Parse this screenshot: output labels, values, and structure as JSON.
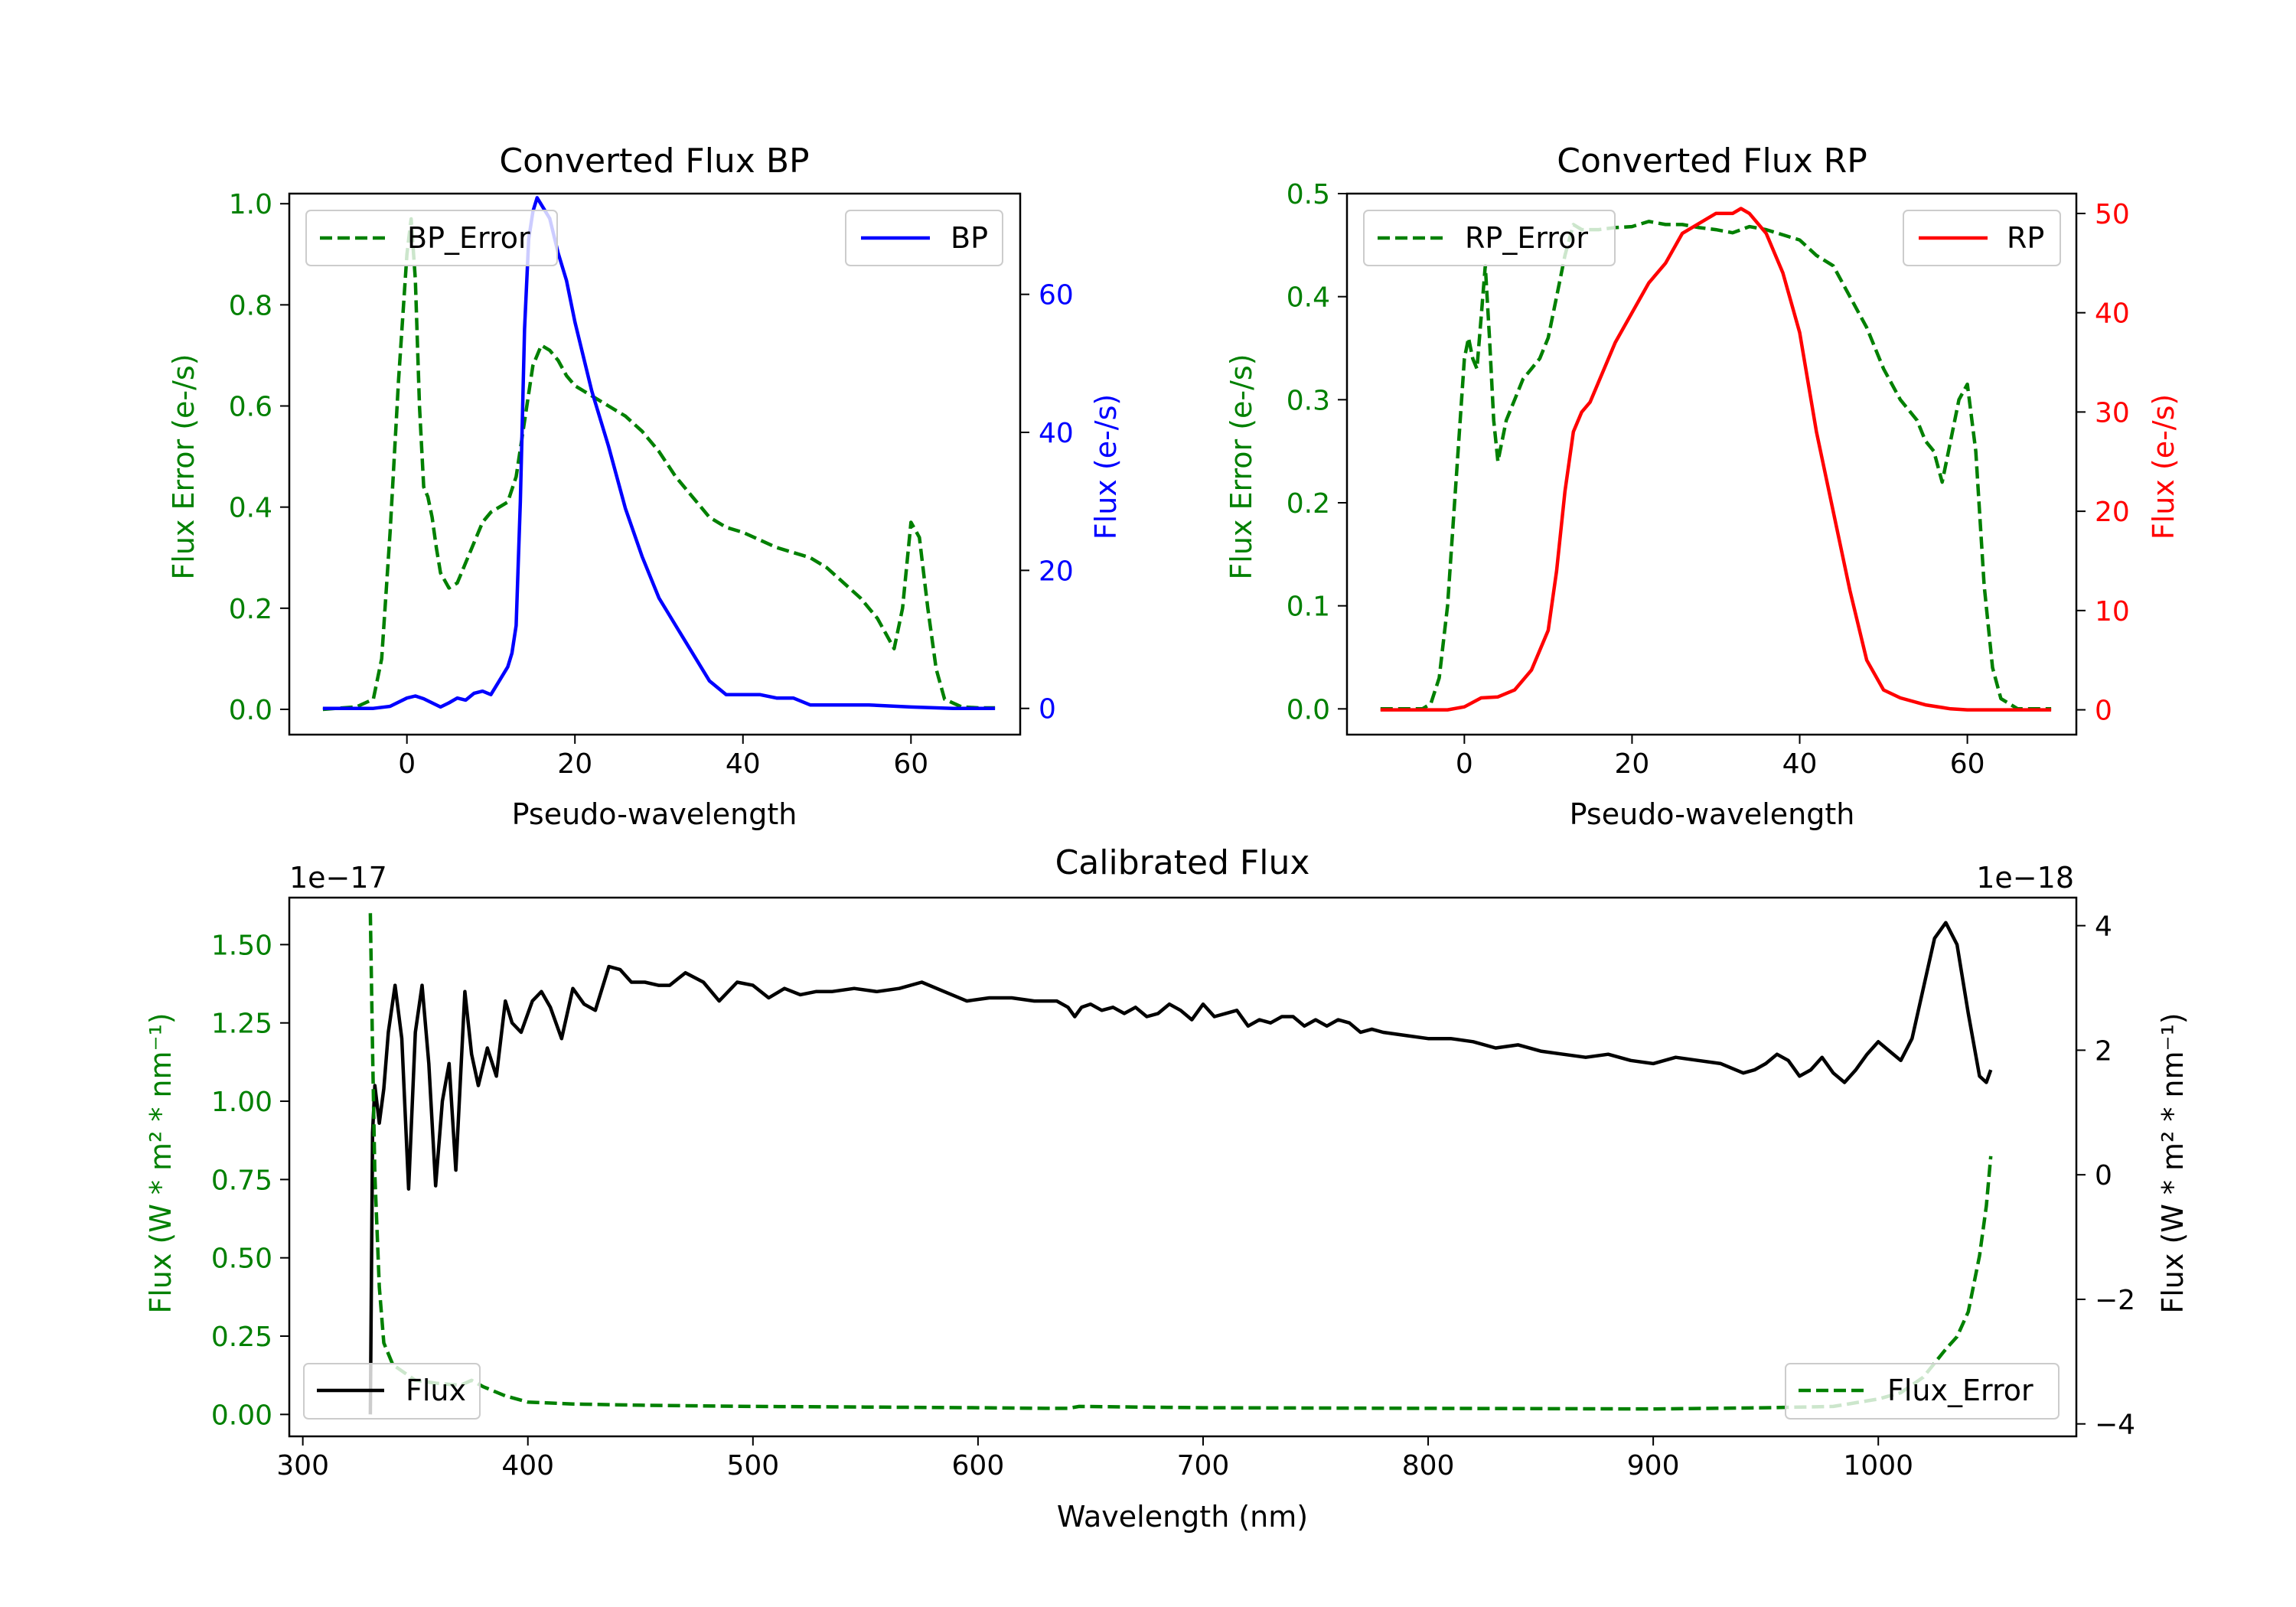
{
  "chart_data": [
    {
      "id": "bp",
      "type": "line",
      "title": "Converted Flux BP",
      "xlabel": "Pseudo-wavelength",
      "ylabel_left": "Flux Error (e-/s)",
      "ylabel_right": "Flux (e-/s)",
      "xlim": [
        -14,
        73
      ],
      "ylim_left": [
        -0.05,
        1.02
      ],
      "ylim_right": [
        -3.8,
        74.6
      ],
      "xticks": [
        0,
        20,
        40,
        60
      ],
      "yticks_left": [
        0.0,
        0.2,
        0.4,
        0.6,
        0.8,
        1.0
      ],
      "yticks_right": [
        0,
        20,
        40,
        60
      ],
      "left_color": "#008000",
      "right_color": "#0000ff",
      "legend_left": "BP_Error",
      "legend_right": "BP",
      "series": [
        {
          "name": "BP_Error",
          "axis": "left",
          "style": "dashed",
          "color": "#008000",
          "x": [
            -10,
            -6,
            -4,
            -3,
            -2,
            -1,
            0,
            0.5,
            1,
            1.5,
            2,
            2.5,
            3,
            3.5,
            4,
            5,
            6,
            7,
            8,
            9,
            10,
            11,
            12,
            13,
            14,
            15,
            16,
            17,
            18,
            19,
            20,
            22,
            24,
            26,
            28,
            30,
            32,
            34,
            36,
            38,
            40,
            44,
            48,
            50,
            52,
            54,
            56,
            57,
            58,
            59,
            60,
            61,
            62,
            63,
            64,
            66,
            68,
            70
          ],
          "y": [
            0.0,
            0.005,
            0.02,
            0.1,
            0.35,
            0.65,
            0.9,
            0.97,
            0.85,
            0.6,
            0.44,
            0.42,
            0.38,
            0.32,
            0.27,
            0.24,
            0.25,
            0.29,
            0.33,
            0.37,
            0.39,
            0.4,
            0.41,
            0.46,
            0.57,
            0.68,
            0.72,
            0.71,
            0.69,
            0.66,
            0.64,
            0.62,
            0.6,
            0.58,
            0.55,
            0.51,
            0.46,
            0.42,
            0.38,
            0.36,
            0.35,
            0.32,
            0.3,
            0.28,
            0.25,
            0.22,
            0.18,
            0.15,
            0.12,
            0.2,
            0.37,
            0.34,
            0.2,
            0.08,
            0.02,
            0.005,
            0.003,
            0.003
          ]
        },
        {
          "name": "BP",
          "axis": "right",
          "style": "solid",
          "color": "#0000ff",
          "x": [
            -10,
            -6,
            -4,
            -2,
            0,
            1,
            2,
            3,
            4,
            5,
            6,
            7,
            8,
            9,
            10,
            11,
            12,
            12.5,
            13,
            13.5,
            14,
            14.5,
            15,
            15.5,
            16,
            17,
            18,
            19,
            20,
            22,
            24,
            26,
            28,
            30,
            31,
            32,
            34,
            36,
            38,
            40,
            42,
            44,
            46,
            48,
            50,
            55,
            60,
            65,
            70
          ],
          "y": [
            0,
            0,
            0,
            0.3,
            1.5,
            1.8,
            1.4,
            0.8,
            0.2,
            0.8,
            1.5,
            1.2,
            2.2,
            2.5,
            2,
            4,
            6,
            8,
            12,
            30,
            55,
            68,
            72,
            74,
            73,
            71,
            66,
            62,
            56,
            46,
            38,
            29,
            22,
            16,
            14,
            12,
            8,
            4,
            2,
            2,
            2,
            1.5,
            1.5,
            0.5,
            0.5,
            0.5,
            0.2,
            0,
            0
          ]
        }
      ]
    },
    {
      "id": "rp",
      "type": "line",
      "title": "Converted Flux RP",
      "xlabel": "Pseudo-wavelength",
      "ylabel_left": "Flux Error (e-/s)",
      "ylabel_right": "Flux (e-/s)",
      "xlim": [
        -14,
        73
      ],
      "ylim_left": [
        -0.025,
        0.5
      ],
      "ylim_right": [
        -2.5,
        52
      ],
      "xticks": [
        0,
        20,
        40,
        60
      ],
      "yticks_left": [
        0.0,
        0.1,
        0.2,
        0.3,
        0.4,
        0.5
      ],
      "yticks_right": [
        0,
        10,
        20,
        30,
        40,
        50
      ],
      "left_color": "#008000",
      "right_color": "#ff0000",
      "legend_left": "RP_Error",
      "legend_right": "RP",
      "series": [
        {
          "name": "RP_Error",
          "axis": "left",
          "style": "dashed",
          "color": "#008000",
          "x": [
            -10,
            -5,
            -4,
            -3,
            -2,
            -1,
            0,
            0.5,
            1,
            1.5,
            2,
            2.5,
            3,
            3.5,
            4,
            5,
            6,
            7,
            8,
            9,
            10,
            11,
            12,
            13,
            14,
            16,
            18,
            20,
            22,
            24,
            26,
            28,
            30,
            32,
            34,
            36,
            38,
            40,
            42,
            44,
            46,
            48,
            50,
            52,
            54,
            55,
            56,
            57,
            58,
            59,
            60,
            61,
            62,
            63,
            64,
            66,
            70
          ],
          "y": [
            0.0,
            0.0,
            0.005,
            0.03,
            0.1,
            0.22,
            0.34,
            0.36,
            0.34,
            0.33,
            0.38,
            0.43,
            0.36,
            0.28,
            0.24,
            0.28,
            0.3,
            0.32,
            0.33,
            0.34,
            0.36,
            0.4,
            0.44,
            0.47,
            0.465,
            0.465,
            0.467,
            0.468,
            0.473,
            0.47,
            0.47,
            0.467,
            0.465,
            0.462,
            0.468,
            0.465,
            0.46,
            0.455,
            0.44,
            0.43,
            0.4,
            0.37,
            0.33,
            0.3,
            0.28,
            0.26,
            0.25,
            0.22,
            0.26,
            0.3,
            0.315,
            0.25,
            0.12,
            0.04,
            0.01,
            0.0,
            0.0
          ]
        },
        {
          "name": "RP",
          "axis": "right",
          "style": "solid",
          "color": "#ff0000",
          "x": [
            -10,
            -2,
            0,
            2,
            4,
            6,
            8,
            10,
            11,
            12,
            13,
            14,
            15,
            16,
            18,
            20,
            22,
            24,
            26,
            28,
            30,
            32,
            33,
            34,
            36,
            38,
            40,
            42,
            44,
            46,
            48,
            50,
            52,
            55,
            58,
            60,
            65,
            70
          ],
          "y": [
            0,
            0,
            0.3,
            1.2,
            1.3,
            2,
            4,
            8,
            14,
            22,
            28,
            30,
            31,
            33,
            37,
            40,
            43,
            45,
            48,
            49,
            50,
            50,
            50.5,
            50,
            48,
            44,
            38,
            28,
            20,
            12,
            5,
            2,
            1.2,
            0.5,
            0.1,
            0,
            0,
            0
          ]
        }
      ]
    },
    {
      "id": "calibrated",
      "type": "line",
      "title": "Calibrated Flux",
      "xlabel": "Wavelength (nm)",
      "ylabel_left": "Flux (W * m² * nm⁻¹)",
      "ylabel_right": "Flux (W * m² * nm⁻¹)",
      "offset_left": "1e−17",
      "offset_right": "1e−18",
      "xlim": [
        294,
        1088
      ],
      "ylim_left": [
        -0.07,
        1.65
      ],
      "ylim_right": [
        -4.2,
        4.45
      ],
      "xticks": [
        300,
        400,
        500,
        600,
        700,
        800,
        900,
        1000
      ],
      "yticks_left": [
        0.0,
        0.25,
        0.5,
        0.75,
        1.0,
        1.25,
        1.5
      ],
      "ytick_labels_left": [
        "0.00",
        "0.25",
        "0.50",
        "0.75",
        "1.00",
        "1.25",
        "1.50"
      ],
      "yticks_right": [
        -4,
        -2,
        0,
        2,
        4
      ],
      "ytick_labels_right": [
        "−4",
        "−2",
        "0",
        "2",
        "4"
      ],
      "left_color": "#008000",
      "right_color": "#000000",
      "legend_left": "Flux",
      "legend_right": "Flux_Error",
      "series": [
        {
          "name": "Flux",
          "axis": "left",
          "style": "solid",
          "color": "#000000",
          "x": [
            330,
            331,
            332,
            334,
            336,
            338,
            341,
            344,
            347,
            350,
            353,
            356,
            359,
            362,
            365,
            368,
            372,
            375,
            378,
            382,
            386,
            390,
            393,
            397,
            402,
            406,
            410,
            415,
            420,
            425,
            430,
            436,
            441,
            446,
            452,
            458,
            463,
            470,
            478,
            485,
            493,
            500,
            507,
            514,
            521,
            528,
            535,
            545,
            555,
            565,
            575,
            585,
            595,
            605,
            615,
            625,
            635,
            640,
            643,
            646,
            650,
            655,
            660,
            665,
            670,
            675,
            680,
            685,
            690,
            695,
            700,
            705,
            710,
            715,
            720,
            725,
            730,
            735,
            740,
            745,
            750,
            755,
            760,
            765,
            770,
            775,
            780,
            790,
            800,
            810,
            820,
            830,
            840,
            850,
            860,
            870,
            880,
            890,
            900,
            910,
            920,
            930,
            940,
            945,
            950,
            955,
            960,
            965,
            970,
            975,
            980,
            985,
            990,
            995,
            1000,
            1005,
            1010,
            1015,
            1020,
            1025,
            1030,
            1035,
            1040,
            1045,
            1048,
            1050
          ],
          "y": [
            0.0,
            0.9,
            1.05,
            0.93,
            1.04,
            1.22,
            1.37,
            1.2,
            0.72,
            1.22,
            1.37,
            1.12,
            0.73,
            1.0,
            1.12,
            0.78,
            1.35,
            1.15,
            1.05,
            1.17,
            1.08,
            1.32,
            1.25,
            1.22,
            1.32,
            1.35,
            1.3,
            1.2,
            1.36,
            1.31,
            1.29,
            1.43,
            1.42,
            1.38,
            1.38,
            1.37,
            1.37,
            1.41,
            1.38,
            1.32,
            1.38,
            1.37,
            1.33,
            1.36,
            1.34,
            1.35,
            1.35,
            1.36,
            1.35,
            1.36,
            1.38,
            1.35,
            1.32,
            1.33,
            1.33,
            1.32,
            1.32,
            1.3,
            1.27,
            1.3,
            1.31,
            1.29,
            1.3,
            1.28,
            1.3,
            1.27,
            1.28,
            1.31,
            1.29,
            1.26,
            1.31,
            1.27,
            1.28,
            1.29,
            1.24,
            1.26,
            1.25,
            1.27,
            1.27,
            1.24,
            1.26,
            1.24,
            1.26,
            1.25,
            1.22,
            1.23,
            1.22,
            1.21,
            1.2,
            1.2,
            1.19,
            1.17,
            1.18,
            1.16,
            1.15,
            1.14,
            1.15,
            1.13,
            1.12,
            1.14,
            1.13,
            1.12,
            1.09,
            1.1,
            1.12,
            1.15,
            1.13,
            1.08,
            1.1,
            1.14,
            1.09,
            1.06,
            1.1,
            1.15,
            1.19,
            1.16,
            1.13,
            1.2,
            1.36,
            1.52,
            1.57,
            1.5,
            1.28,
            1.08,
            1.06,
            1.1
          ]
        },
        {
          "name": "Flux_Error",
          "axis": "right",
          "style": "dashed",
          "color": "#008000",
          "x": [
            330,
            331,
            332,
            334,
            336,
            340,
            350,
            360,
            370,
            375,
            380,
            390,
            400,
            420,
            450,
            500,
            550,
            600,
            630,
            640,
            645,
            700,
            800,
            900,
            950,
            980,
            1000,
            1010,
            1020,
            1030,
            1035,
            1040,
            1045,
            1048,
            1050
          ],
          "y": [
            4.2,
            2.0,
            0.0,
            -1.8,
            -2.7,
            -3.05,
            -3.3,
            -3.35,
            -3.38,
            -3.3,
            -3.4,
            -3.55,
            -3.65,
            -3.68,
            -3.7,
            -3.72,
            -3.73,
            -3.74,
            -3.75,
            -3.75,
            -3.72,
            -3.74,
            -3.75,
            -3.76,
            -3.74,
            -3.72,
            -3.6,
            -3.5,
            -3.25,
            -2.8,
            -2.6,
            -2.2,
            -1.3,
            -0.5,
            0.3
          ]
        }
      ]
    }
  ]
}
